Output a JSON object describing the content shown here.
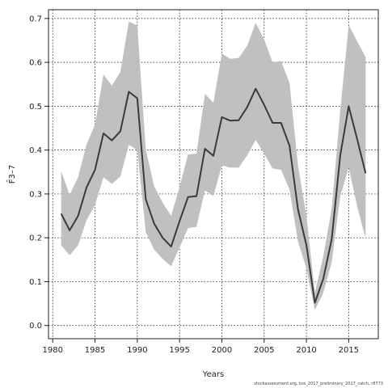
{
  "chart_data": {
    "type": "line",
    "title": "",
    "xlabel": "Years",
    "ylabel": "F̄3–7",
    "xlim": [
      1979.5,
      2018.5
    ],
    "ylim": [
      -0.03,
      0.72
    ],
    "x_ticks": [
      1980,
      1985,
      1990,
      1995,
      2000,
      2005,
      2010,
      2015
    ],
    "x_tick_labels": [
      "1980",
      "1985",
      "1990",
      "1995",
      "2000",
      "2005",
      "2010",
      "2015"
    ],
    "y_ticks": [
      0.0,
      0.1,
      0.2,
      0.3,
      0.4,
      0.5,
      0.6,
      0.7
    ],
    "y_tick_labels": [
      "0.0",
      "0.1",
      "0.2",
      "0.3",
      "0.4",
      "0.5",
      "0.6",
      "0.7"
    ],
    "grid": true,
    "colors": {
      "line": "#3a3a3a",
      "band": "#bdbdbd",
      "grid": "#000000"
    },
    "x": [
      1981,
      1982,
      1983,
      1984,
      1985,
      1986,
      1987,
      1988,
      1989,
      1990,
      1991,
      1992,
      1993,
      1994,
      1995,
      1996,
      1997,
      1998,
      1999,
      2000,
      2001,
      2002,
      2003,
      2004,
      2005,
      2006,
      2007,
      2008,
      2009,
      2010,
      2011,
      2012,
      2013,
      2014,
      2015,
      2016,
      2017
    ],
    "series": [
      {
        "values": [
          0.255,
          0.217,
          0.25,
          0.315,
          0.355,
          0.438,
          0.422,
          0.443,
          0.533,
          0.518,
          0.288,
          0.232,
          0.2,
          0.18,
          0.238,
          0.293,
          0.295,
          0.403,
          0.387,
          0.475,
          0.467,
          0.468,
          0.498,
          0.54,
          0.503,
          0.462,
          0.462,
          0.41,
          0.265,
          0.183,
          0.052,
          0.107,
          0.198,
          0.388,
          0.5,
          0.425,
          0.347
        ]
      }
    ],
    "band": {
      "upper": [
        0.352,
        0.298,
        0.338,
        0.413,
        0.458,
        0.572,
        0.547,
        0.578,
        0.693,
        0.684,
        0.402,
        0.317,
        0.28,
        0.25,
        0.316,
        0.39,
        0.392,
        0.528,
        0.508,
        0.62,
        0.608,
        0.61,
        0.638,
        0.69,
        0.652,
        0.6,
        0.603,
        0.553,
        0.365,
        0.25,
        0.075,
        0.158,
        0.268,
        0.49,
        0.685,
        0.648,
        0.612
      ],
      "lower": [
        0.183,
        0.16,
        0.183,
        0.24,
        0.275,
        0.338,
        0.323,
        0.34,
        0.412,
        0.4,
        0.213,
        0.173,
        0.152,
        0.135,
        0.178,
        0.222,
        0.225,
        0.308,
        0.295,
        0.365,
        0.36,
        0.36,
        0.388,
        0.423,
        0.392,
        0.358,
        0.355,
        0.31,
        0.192,
        0.13,
        0.035,
        0.075,
        0.145,
        0.295,
        0.36,
        0.272,
        0.198
      ]
    }
  },
  "footnote": "stockassessment.org, bss_2017_preliminary_2017_catch, r8773"
}
